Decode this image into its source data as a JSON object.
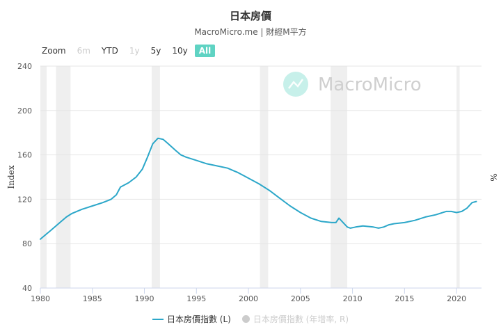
{
  "header": {
    "title": "日本房價",
    "subtitle": "MacroMicro.me | 財經M平方"
  },
  "zoom": {
    "label": "Zoom",
    "buttons": [
      {
        "label": "6m",
        "state": "disabled"
      },
      {
        "label": "YTD",
        "state": "normal"
      },
      {
        "label": "1y",
        "state": "disabled"
      },
      {
        "label": "5y",
        "state": "normal"
      },
      {
        "label": "10y",
        "state": "normal"
      },
      {
        "label": "All",
        "state": "active"
      }
    ]
  },
  "watermark": "MacroMicro",
  "legend": [
    {
      "label": "日本房價指數 (L)",
      "color": "#2ca7c9",
      "visible": true
    },
    {
      "label": "日本房價指數 (年增率, R)",
      "color": "#cccccc",
      "visible": false
    }
  ],
  "chart_data": {
    "type": "line",
    "xlabel": "",
    "ylabel": "Index",
    "y2label": "%",
    "xlim": [
      1980,
      2022.4
    ],
    "ylim": [
      40,
      240
    ],
    "y_ticks": [
      40,
      80,
      120,
      160,
      200,
      240
    ],
    "x_ticks": [
      1980,
      1985,
      1990,
      1995,
      2000,
      2005,
      2010,
      2015,
      2020
    ],
    "grid": "horizontal",
    "legend_position": "bottom",
    "line_color": "#2ca7c9",
    "recessions": [
      [
        1980.0,
        1980.6
      ],
      [
        1981.5,
        1982.9
      ],
      [
        1990.7,
        1991.5
      ],
      [
        2001.1,
        2001.9
      ],
      [
        2007.9,
        2009.5
      ],
      [
        2020.0,
        2020.3
      ]
    ],
    "series": [
      {
        "name": "日本房價指數 (L)",
        "points": [
          [
            1980.0,
            84
          ],
          [
            1980.5,
            88
          ],
          [
            1981.0,
            92
          ],
          [
            1981.5,
            96
          ],
          [
            1982.0,
            100
          ],
          [
            1982.5,
            104
          ],
          [
            1983.0,
            107
          ],
          [
            1983.5,
            109
          ],
          [
            1984.0,
            111
          ],
          [
            1985.0,
            114
          ],
          [
            1986.0,
            117
          ],
          [
            1986.8,
            120
          ],
          [
            1987.3,
            124
          ],
          [
            1987.7,
            131
          ],
          [
            1988.5,
            135
          ],
          [
            1989.2,
            140
          ],
          [
            1989.8,
            147
          ],
          [
            1990.3,
            158
          ],
          [
            1990.8,
            170
          ],
          [
            1991.3,
            175
          ],
          [
            1991.8,
            174
          ],
          [
            1992.3,
            170
          ],
          [
            1993.0,
            164
          ],
          [
            1993.5,
            160
          ],
          [
            1994.0,
            158
          ],
          [
            1995.0,
            155
          ],
          [
            1996.0,
            152
          ],
          [
            1997.0,
            150
          ],
          [
            1998.0,
            148
          ],
          [
            1998.5,
            146
          ],
          [
            1999.0,
            144
          ],
          [
            2000.0,
            139
          ],
          [
            2001.0,
            134
          ],
          [
            2002.0,
            128
          ],
          [
            2003.0,
            121
          ],
          [
            2004.0,
            114
          ],
          [
            2005.0,
            108
          ],
          [
            2006.0,
            103
          ],
          [
            2007.0,
            100
          ],
          [
            2008.0,
            99
          ],
          [
            2008.4,
            99
          ],
          [
            2008.7,
            103
          ],
          [
            2009.1,
            99
          ],
          [
            2009.5,
            95
          ],
          [
            2009.8,
            94
          ],
          [
            2010.3,
            95
          ],
          [
            2011.0,
            96
          ],
          [
            2012.0,
            95
          ],
          [
            2012.5,
            94
          ],
          [
            2013.0,
            95
          ],
          [
            2013.5,
            97
          ],
          [
            2014.0,
            98
          ],
          [
            2015.0,
            99
          ],
          [
            2016.0,
            101
          ],
          [
            2017.0,
            104
          ],
          [
            2018.0,
            106
          ],
          [
            2019.0,
            109
          ],
          [
            2019.5,
            109
          ],
          [
            2020.0,
            108
          ],
          [
            2020.5,
            109
          ],
          [
            2021.0,
            112
          ],
          [
            2021.5,
            117
          ],
          [
            2021.9,
            118
          ]
        ]
      }
    ]
  }
}
